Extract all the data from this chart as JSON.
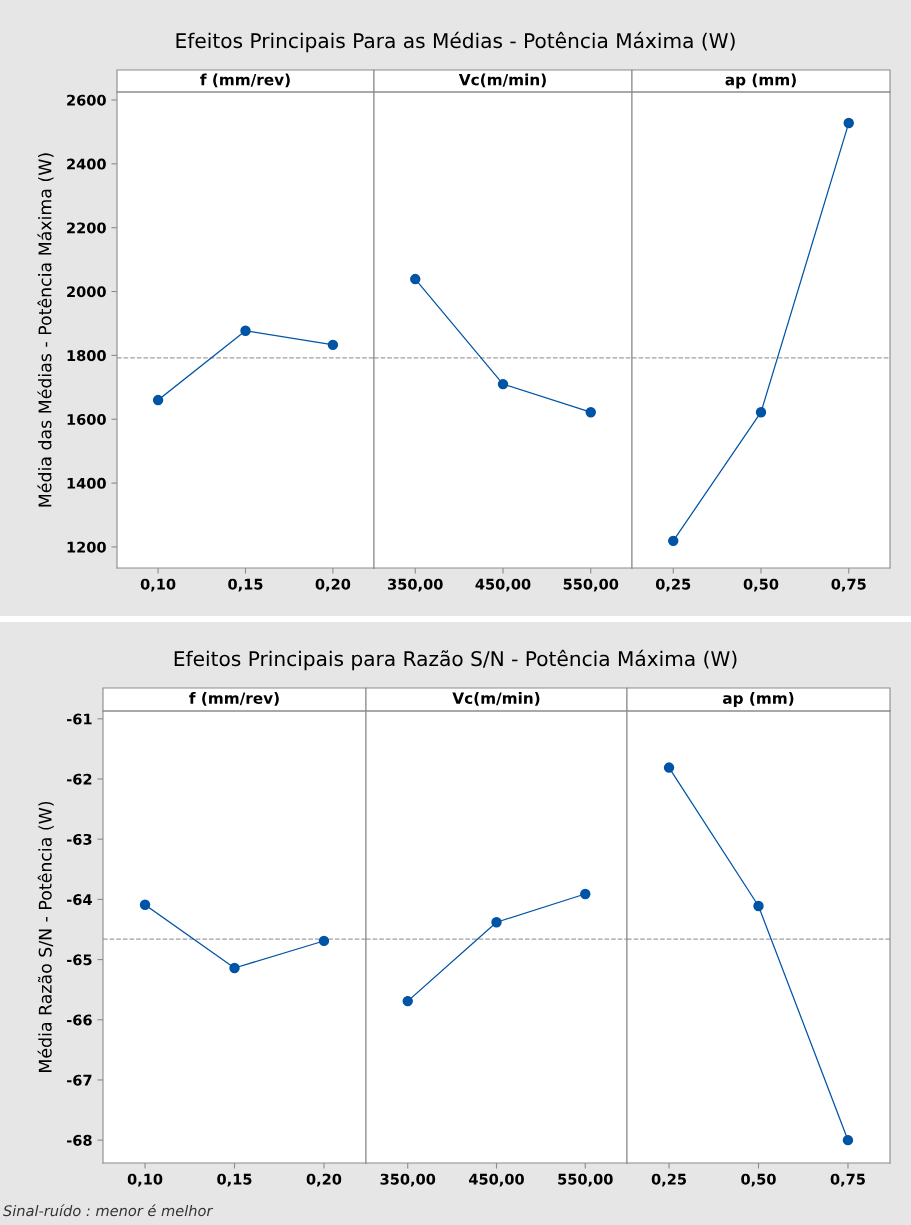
{
  "chart_data": [
    {
      "type": "line",
      "title": "Efeitos Principais Para as Médias - Potência Máxima (W)",
      "subtitle": "f (mm/rev)",
      "ylabel": "Média das Médias - Potência Máxima (W)",
      "categories": [
        "0,10",
        "0,15",
        "0,20"
      ],
      "values": [
        1660,
        1877,
        1833
      ],
      "color": "#0054a6",
      "marker": "circle",
      "ylim": [
        1134,
        2625
      ],
      "yticks": [
        1200,
        1400,
        1600,
        1800,
        2000,
        2200,
        2400,
        2600
      ],
      "ref_lines": [
        {
          "axis": "y",
          "value": 1792,
          "color": "#a0a0a0",
          "line_style": "dashed"
        }
      ],
      "grid": false,
      "legend": false
    },
    {
      "type": "line",
      "subtitle": "Vc(m/min)",
      "categories": [
        "350,00",
        "450,00",
        "550,00"
      ],
      "values": [
        2039,
        1710,
        1622
      ],
      "color": "#0054a6",
      "marker": "circle",
      "ylim": [
        1134,
        2625
      ],
      "yticks": [
        1200,
        1400,
        1600,
        1800,
        2000,
        2200,
        2400,
        2600
      ],
      "tick_labels": "x",
      "ref_lines": [
        {
          "axis": "y",
          "value": 1792,
          "color": "#a0a0a0",
          "line_style": "dashed"
        }
      ],
      "grid": false,
      "legend": false
    },
    {
      "type": "line",
      "subtitle": "ap (mm)",
      "categories": [
        "0,25",
        "0,50",
        "0,75"
      ],
      "values": [
        1219,
        1622,
        2528
      ],
      "color": "#0054a6",
      "marker": "circle",
      "ylim": [
        1134,
        2625
      ],
      "yticks": [
        1200,
        1400,
        1600,
        1800,
        2000,
        2200,
        2400,
        2600
      ],
      "tick_labels": "x",
      "ref_lines": [
        {
          "axis": "y",
          "value": 1792,
          "color": "#a0a0a0",
          "line_style": "dashed"
        }
      ],
      "grid": false,
      "legend": false
    },
    {
      "type": "line",
      "title": "Efeitos Principais para Razão S/N - Potência Máxima (W)",
      "subtitle": "f (mm/rev)",
      "ylabel": "Média Razão S/N - Potência (W)",
      "categories": [
        "0,10",
        "0,15",
        "0,20"
      ],
      "values": [
        -64.09,
        -65.14,
        -64.69
      ],
      "color": "#0054a6",
      "marker": "circle",
      "ylim": [
        -68.38,
        -60.87
      ],
      "yticks": [
        -68,
        -67,
        -66,
        -65,
        -64,
        -63,
        -62,
        -61
      ],
      "ref_lines": [
        {
          "axis": "y",
          "value": -64.66,
          "color": "#a0a0a0",
          "line_style": "dashed"
        }
      ],
      "annotations": [
        "Sinal-ruído : menor é melhor"
      ],
      "grid": false,
      "legend": false
    },
    {
      "type": "line",
      "subtitle": "Vc(m/min)",
      "categories": [
        "350,00",
        "450,00",
        "550,00"
      ],
      "values": [
        -65.69,
        -64.38,
        -63.91
      ],
      "color": "#0054a6",
      "marker": "circle",
      "ylim": [
        -68.38,
        -60.87
      ],
      "yticks": [
        -68,
        -67,
        -66,
        -65,
        -64,
        -63,
        -62,
        -61
      ],
      "tick_labels": "x",
      "ref_lines": [
        {
          "axis": "y",
          "value": -64.66,
          "color": "#a0a0a0",
          "line_style": "dashed"
        }
      ],
      "grid": false,
      "legend": false
    },
    {
      "type": "line",
      "subtitle": "ap (mm)",
      "categories": [
        "0,25",
        "0,50",
        "0,75"
      ],
      "values": [
        -61.81,
        -64.11,
        -68.0
      ],
      "color": "#0054a6",
      "marker": "circle",
      "ylim": [
        -68.38,
        -60.87
      ],
      "yticks": [
        -68,
        -67,
        -66,
        -65,
        -64,
        -63,
        -62,
        -61
      ],
      "tick_labels": "x",
      "ref_lines": [
        {
          "axis": "y",
          "value": -64.66,
          "color": "#a0a0a0",
          "line_style": "dashed"
        }
      ],
      "grid": false,
      "legend": false
    }
  ]
}
